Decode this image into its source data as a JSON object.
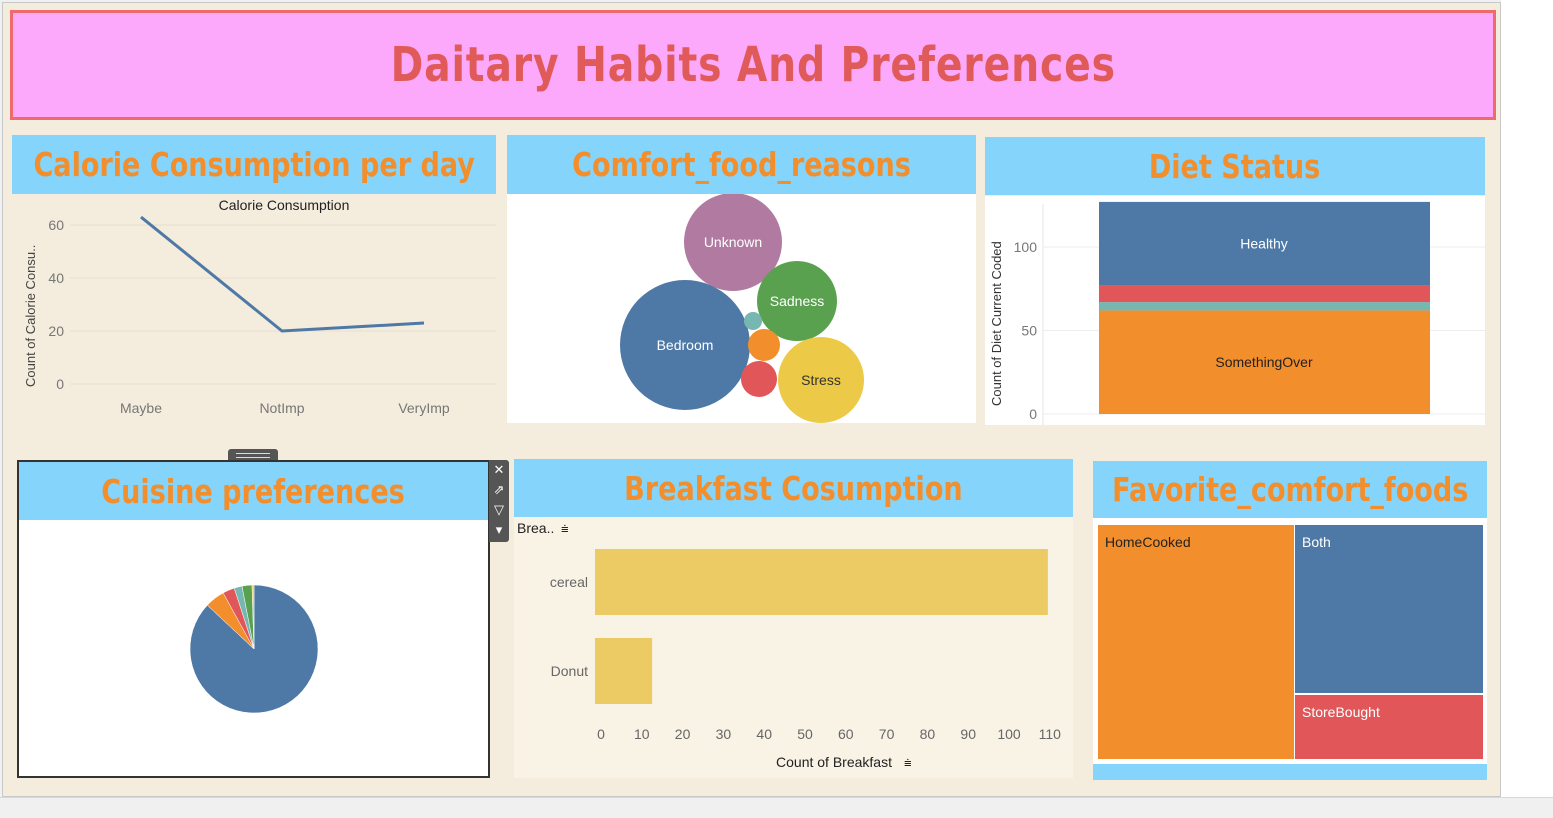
{
  "dashboard": {
    "title": "Daitary Habits And Preferences"
  },
  "calorie": {
    "title": "Calorie Consumption per day",
    "chart_title": "Calorie Consumption",
    "ylabel": "Count of Calorie Consu..",
    "yticks": [
      "60",
      "40",
      "20",
      "0"
    ],
    "categories": [
      "Maybe",
      "NotImp",
      "VeryImp"
    ],
    "values": [
      63,
      20,
      23
    ],
    "line_color": "#4e79a7"
  },
  "comfort_reasons": {
    "title": "Comfort_food_reasons",
    "bubbles": [
      {
        "label": "Unknown",
        "color": "#b07aa1"
      },
      {
        "label": "Sadness",
        "color": "#59a14f"
      },
      {
        "label": "Bedroom",
        "color": "#4e79a7"
      },
      {
        "label": "Stress",
        "color": "#edc948"
      },
      {
        "label": "",
        "color": "#76b7b2"
      },
      {
        "label": "",
        "color": "#f28e2b"
      },
      {
        "label": "",
        "color": "#e15759"
      }
    ]
  },
  "diet": {
    "title": "Diet Status",
    "ylabel": "Count of Diet Current Coded",
    "yticks": [
      "100",
      "50",
      "0"
    ],
    "segments": [
      {
        "label": "SomethingOver",
        "value": 62,
        "color": "#f28e2b"
      },
      {
        "label": "",
        "value": 5,
        "color": "#76b7b2"
      },
      {
        "label": "",
        "value": 10,
        "color": "#e15759"
      },
      {
        "label": "Healthy",
        "value": 50,
        "color": "#4e79a7"
      }
    ]
  },
  "cuisine": {
    "title": "Cuisine preferences",
    "slices": [
      {
        "value": 87,
        "color": "#4e79a7"
      },
      {
        "value": 5,
        "color": "#f28e2b"
      },
      {
        "value": 3,
        "color": "#e15759"
      },
      {
        "value": 2,
        "color": "#76b7b2"
      },
      {
        "value": 2.5,
        "color": "#59a14f"
      },
      {
        "value": 0.5,
        "color": "#edc948"
      }
    ],
    "toolbar": {
      "close": "✕",
      "open": "⇗",
      "filter": "▽",
      "menu": "▾"
    }
  },
  "breakfast": {
    "title": "Breakfast Cosumption",
    "header": "Brea..",
    "sort_icon": "⩧",
    "categories": [
      "cereal",
      "Donut"
    ],
    "values": [
      111,
      14
    ],
    "xticks": [
      "0",
      "10",
      "20",
      "30",
      "40",
      "50",
      "60",
      "70",
      "80",
      "90",
      "100",
      "110"
    ],
    "xlabel": "Count of Breakfast",
    "bar_color": "#edcb64"
  },
  "comfort_foods": {
    "title": "Favorite_comfort_foods",
    "cells": [
      {
        "label": "HomeCooked",
        "color": "#f28e2b"
      },
      {
        "label": "Both",
        "color": "#4e79a7"
      },
      {
        "label": "StoreBought",
        "color": "#e15759"
      }
    ]
  }
}
